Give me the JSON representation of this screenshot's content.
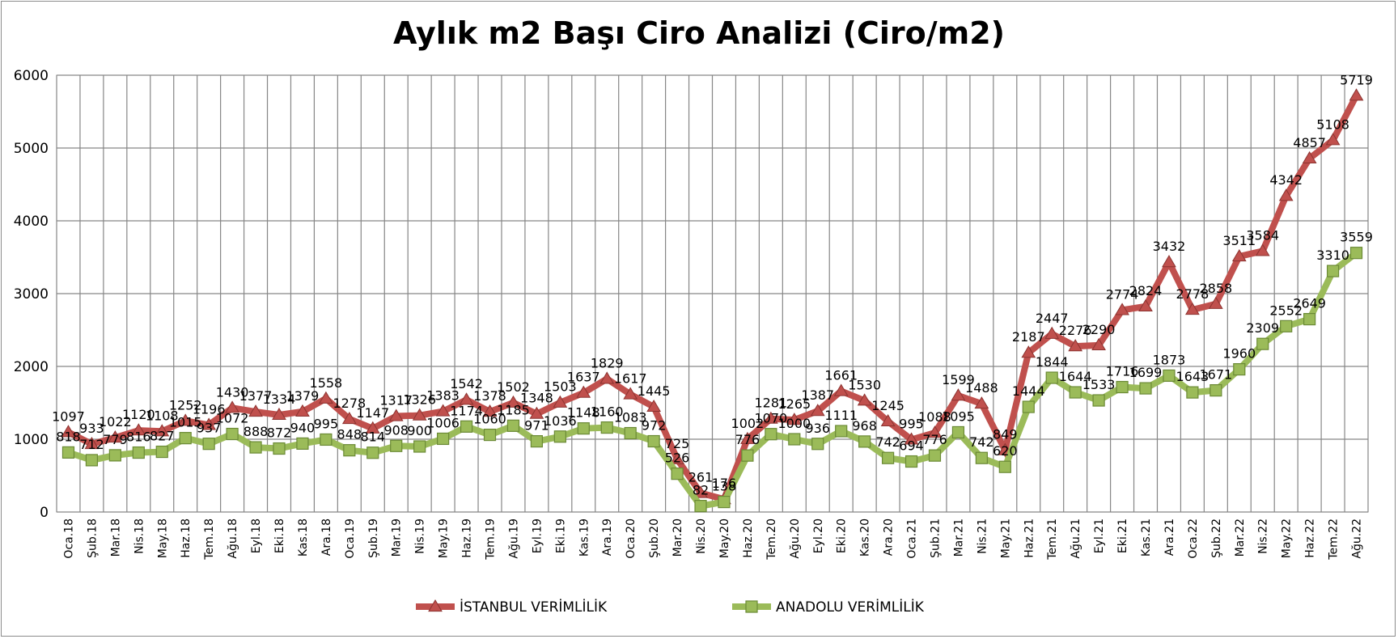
{
  "chart_data": {
    "type": "line",
    "title": "Aylık m2 Başı Ciro Analizi (Ciro/m2)",
    "xlabel": "",
    "ylabel": "",
    "ylim": [
      0,
      6000
    ],
    "yticks": [
      0,
      1000,
      2000,
      3000,
      4000,
      5000,
      6000
    ],
    "grid": true,
    "legend_position": "bottom",
    "categories": [
      "Oca.18",
      "Şub.18",
      "Mar.18",
      "Nis.18",
      "May.18",
      "Haz.18",
      "Tem.18",
      "Ağu.18",
      "Eyl.18",
      "Eki.18",
      "Kas.18",
      "Ara.18",
      "Oca.19",
      "Şub.19",
      "Mar.19",
      "Nis.19",
      "May.19",
      "Haz.19",
      "Tem.19",
      "Ağu.19",
      "Eyl.19",
      "Eki.19",
      "Kas.19",
      "Ara.19",
      "Oca.20",
      "Şub.20",
      "Mar.20",
      "Nis.20",
      "May.20",
      "Haz.20",
      "Tem.20",
      "Ağu.20",
      "Eyl.20",
      "Eki.20",
      "Kas.20",
      "Ara.20",
      "Oca.21",
      "Şub.21",
      "Mar.21",
      "Nis.21",
      "May.21",
      "Haz.21",
      "Tem.21",
      "Ağu.21",
      "Eyl.21",
      "Eki.21",
      "Kas.21",
      "Ara.21",
      "Oca.22",
      "Şub.22",
      "Mar.22",
      "Nis.22",
      "May.22",
      "Haz.22",
      "Tem.22",
      "Ağu.22"
    ],
    "series": [
      {
        "name": "İSTANBUL VERİMLİLİK",
        "color": "#c0504d",
        "marker": "triangle",
        "values": [
          1097,
          933,
          1022,
          1120,
          1108,
          1252,
          1196,
          1430,
          1377,
          1334,
          1379,
          1558,
          1278,
          1147,
          1317,
          1326,
          1383,
          1542,
          1378,
          1502,
          1348,
          1503,
          1637,
          1829,
          1617,
          1445,
          725,
          261,
          176,
          1002,
          1281,
          1265,
          1387,
          1661,
          1530,
          1245,
          995,
          1088,
          1599,
          1488,
          849,
          2187,
          2447,
          2276,
          2290,
          2774,
          2824,
          3432,
          2778,
          2858,
          3511,
          3584,
          4342,
          4857,
          5108,
          5719
        ]
      },
      {
        "name": "ANADOLU VERİMLİLİK",
        "color": "#9bbb59",
        "marker": "square",
        "values": [
          818,
          712,
          779,
          816,
          827,
          1015,
          937,
          1072,
          888,
          872,
          940,
          995,
          848,
          814,
          908,
          900,
          1006,
          1174,
          1060,
          1185,
          971,
          1036,
          1148,
          1160,
          1083,
          972,
          526,
          82,
          138,
          776,
          1070,
          1000,
          936,
          1111,
          968,
          742,
          694,
          776,
          1095,
          742,
          620,
          1444,
          1844,
          1644,
          1533,
          1716,
          1699,
          1873,
          1643,
          1671,
          1960,
          2309,
          2552,
          2649,
          3310,
          3559
        ]
      }
    ]
  }
}
